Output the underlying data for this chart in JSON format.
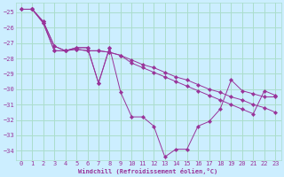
{
  "xlabel": "Windchill (Refroidissement éolien,°C)",
  "bg_color": "#cceeff",
  "grid_color": "#aaddcc",
  "line_color": "#993399",
  "series": [
    {
      "x": [
        0,
        1,
        2,
        3,
        4,
        5,
        6,
        7,
        8,
        9,
        10,
        11,
        12,
        13,
        14,
        15,
        16,
        17,
        18,
        19,
        20,
        21,
        22,
        23
      ],
      "y": [
        -24.8,
        -24.8,
        -25.7,
        -27.5,
        -27.5,
        -27.4,
        -27.5,
        -27.5,
        -27.6,
        -27.8,
        -28.1,
        -28.4,
        -28.6,
        -28.9,
        -29.2,
        -29.4,
        -29.7,
        -30.0,
        -30.2,
        -30.5,
        -30.7,
        -31.0,
        -31.2,
        -31.5
      ]
    },
    {
      "x": [
        0,
        1,
        2,
        3,
        4,
        5,
        6,
        7,
        8,
        9,
        10,
        11,
        12,
        13,
        14,
        15,
        16,
        17,
        18,
        19,
        20,
        21,
        22,
        23
      ],
      "y": [
        -24.8,
        -24.8,
        -25.7,
        -27.5,
        -27.5,
        -27.4,
        -27.5,
        -27.5,
        -27.6,
        -27.8,
        -28.3,
        -28.6,
        -28.9,
        -29.2,
        -29.5,
        -29.8,
        -30.1,
        -30.4,
        -30.7,
        -31.0,
        -31.3,
        -31.6,
        -30.1,
        -30.4
      ]
    },
    {
      "x": [
        1,
        2,
        3,
        4,
        5,
        6,
        7,
        8,
        9,
        10,
        11,
        12,
        13,
        14,
        15,
        16,
        17,
        18,
        19,
        20,
        21,
        22,
        23
      ],
      "y": [
        -24.8,
        -25.6,
        -27.2,
        -27.5,
        -27.3,
        -27.3,
        -29.6,
        -27.3,
        -30.2,
        -31.8,
        -31.8,
        -32.4,
        -34.4,
        -33.9,
        -33.9,
        -32.4,
        -32.1,
        -31.3,
        -29.4,
        -30.1,
        -30.3,
        -30.5,
        -30.5
      ]
    },
    {
      "x": [
        1,
        2,
        3,
        4,
        5,
        6,
        7,
        8
      ],
      "y": [
        -24.8,
        -25.6,
        -27.2,
        -27.5,
        -27.3,
        -27.3,
        -29.6,
        -27.3
      ]
    }
  ],
  "xlim": [
    -0.5,
    23.5
  ],
  "ylim": [
    -34.6,
    -24.4
  ],
  "xticks": [
    0,
    1,
    2,
    3,
    4,
    5,
    6,
    7,
    8,
    9,
    10,
    11,
    12,
    13,
    14,
    15,
    16,
    17,
    18,
    19,
    20,
    21,
    22,
    23
  ],
  "yticks": [
    -25,
    -26,
    -27,
    -28,
    -29,
    -30,
    -31,
    -32,
    -33,
    -34
  ]
}
